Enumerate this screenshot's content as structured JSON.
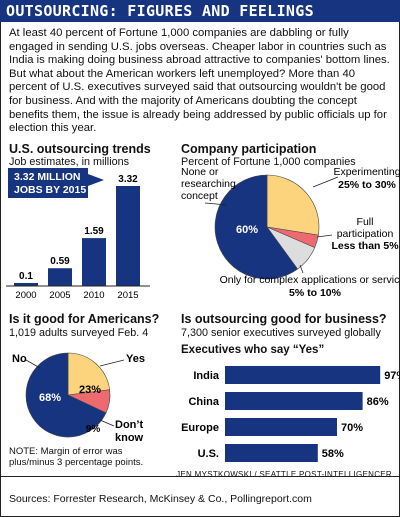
{
  "title": "OUTSOURCING: FIGURES AND FEELINGS",
  "intro": "At least 40 percent of Fortune 1,000 companies are dabbling or fully engaged in sending U.S. jobs overseas. Cheaper labor in countries such as India is making doing business abroad attractive to companies' bottom lines. But what about the American workers left unemployed? More than 40 percent of U.S. executives surveyed said that outsourcing wouldn't be good for business. And with the majority of Americans doubting the concept benefits them, the issue is already being addressed by public officials up for election this year.",
  "credit": "JEN MYSTKOWSKI / SEATTLE POST-INTELLIGENCER",
  "sources": "Sources: Forrester Research, McKinsey & Co., Pollingreport.com",
  "note": "NOTE: Margin of error was plus/minus 3 percentage points.",
  "colors": {
    "navy": "#16347f",
    "yellow": "#fdd47e",
    "pink": "#ee6a71",
    "gray": "#dddddd"
  },
  "chart_data": [
    {
      "type": "bar",
      "title": "U.S. outsourcing trends",
      "subtitle": "Job estimates, in millions",
      "callout": [
        "3.32 MILLION",
        "JOBS BY 2015"
      ],
      "categories": [
        "2000",
        "2005",
        "2010",
        "2015"
      ],
      "values": [
        0.1,
        0.59,
        1.59,
        3.32
      ],
      "value_labels": [
        "0.1",
        "0.59",
        "1.59",
        "3.32"
      ],
      "ylim": [
        0,
        3.32
      ]
    },
    {
      "type": "pie",
      "title": "Company participation",
      "subtitle": "Percent of Fortune 1,000 companies",
      "slices": [
        {
          "label": "None or researching concept",
          "value": 60,
          "value_label": "60%",
          "color": "#16347f"
        },
        {
          "label": "Experimenting",
          "value": 27.5,
          "value_label": "25% to 30%",
          "color": "#fdd47e"
        },
        {
          "label": "Full participation",
          "value": 4,
          "value_label": "Less than 5%",
          "color": "#ee6a71"
        },
        {
          "label": "Only for complex applications or services",
          "value": 8.5,
          "value_label": "5% to 10%",
          "color": "#dddddd"
        }
      ]
    },
    {
      "type": "pie",
      "title": "Is it good for Americans?",
      "subtitle": "1,019 adults surveyed Feb. 4",
      "slices": [
        {
          "label": "No",
          "value": 68,
          "value_label": "68%",
          "color": "#16347f"
        },
        {
          "label": "Yes",
          "value": 23,
          "value_label": "23%",
          "color": "#fdd47e"
        },
        {
          "label": "Don't know",
          "value": 9,
          "value_label": "9%",
          "color": "#ee6a71"
        }
      ]
    },
    {
      "type": "bar",
      "orientation": "horizontal",
      "title": "Is outsourcing good for business?",
      "subtitle": "7,300 senior executives surveyed globally",
      "group_title": "Executives who say “Yes”",
      "categories": [
        "India",
        "China",
        "Europe",
        "U.S."
      ],
      "values": [
        97,
        86,
        70,
        58
      ],
      "value_labels": [
        "97%",
        "86%",
        "70%",
        "58%"
      ],
      "xlim": [
        0,
        100
      ]
    }
  ]
}
